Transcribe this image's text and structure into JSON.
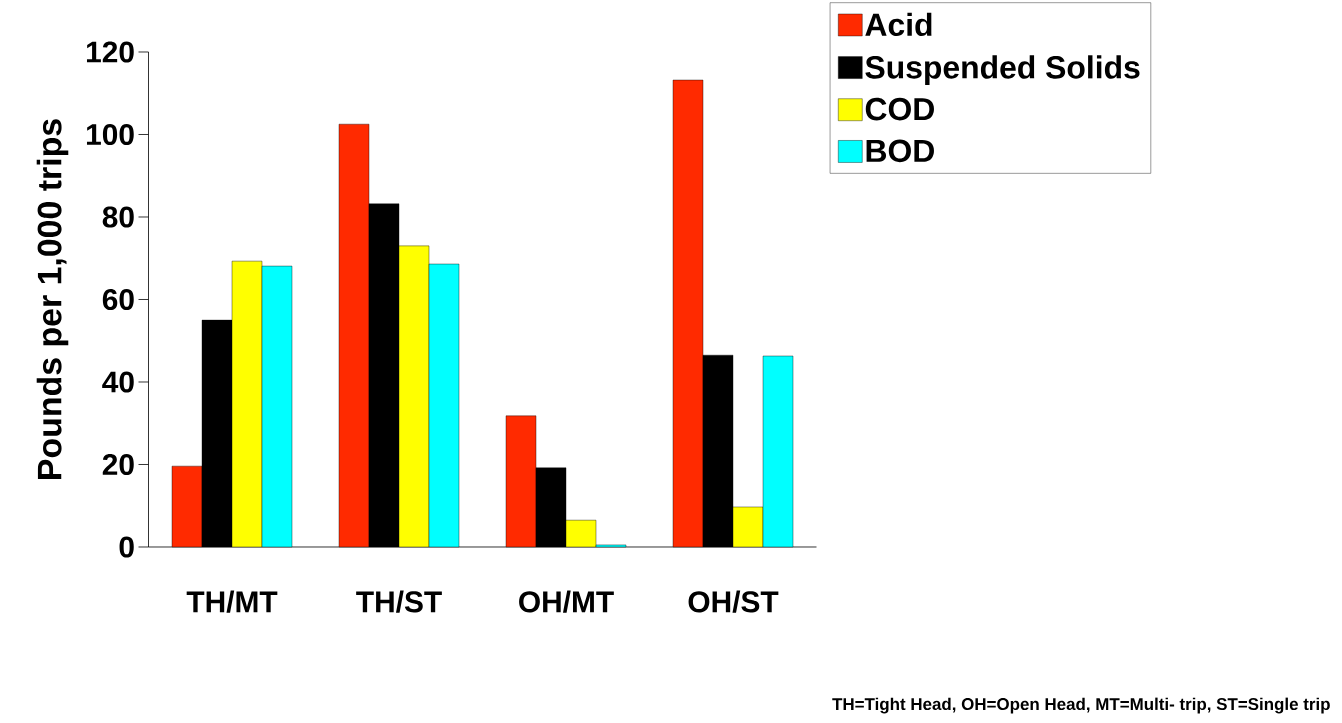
{
  "chart_data": {
    "type": "bar",
    "ylabel": "Pounds per 1,000 trips",
    "categories": [
      "TH/MT",
      "TH/ST",
      "OH/MT",
      "OH/ST"
    ],
    "series": [
      {
        "name": "Acid",
        "color": "#ff2a00",
        "values": [
          19.6,
          102.5,
          31.8,
          113.2
        ]
      },
      {
        "name": "Suspended Solids",
        "color": "#000000",
        "values": [
          55,
          83.2,
          19.2,
          46.5
        ]
      },
      {
        "name": "COD",
        "color": "#ffff00",
        "values": [
          69.3,
          73,
          6.5,
          9.7
        ]
      },
      {
        "name": "BOD",
        "color": "#00ffff",
        "values": [
          68.1,
          68.6,
          0.5,
          46.3
        ]
      }
    ],
    "ylim": [
      0,
      120
    ],
    "yticks": [
      0,
      20,
      40,
      60,
      80,
      100,
      120
    ],
    "legend": "top right",
    "grid": false,
    "annotations": [
      "TH=Tight Head, OH=Open Head, MT=Multi- trip, ST=Single trip"
    ]
  }
}
